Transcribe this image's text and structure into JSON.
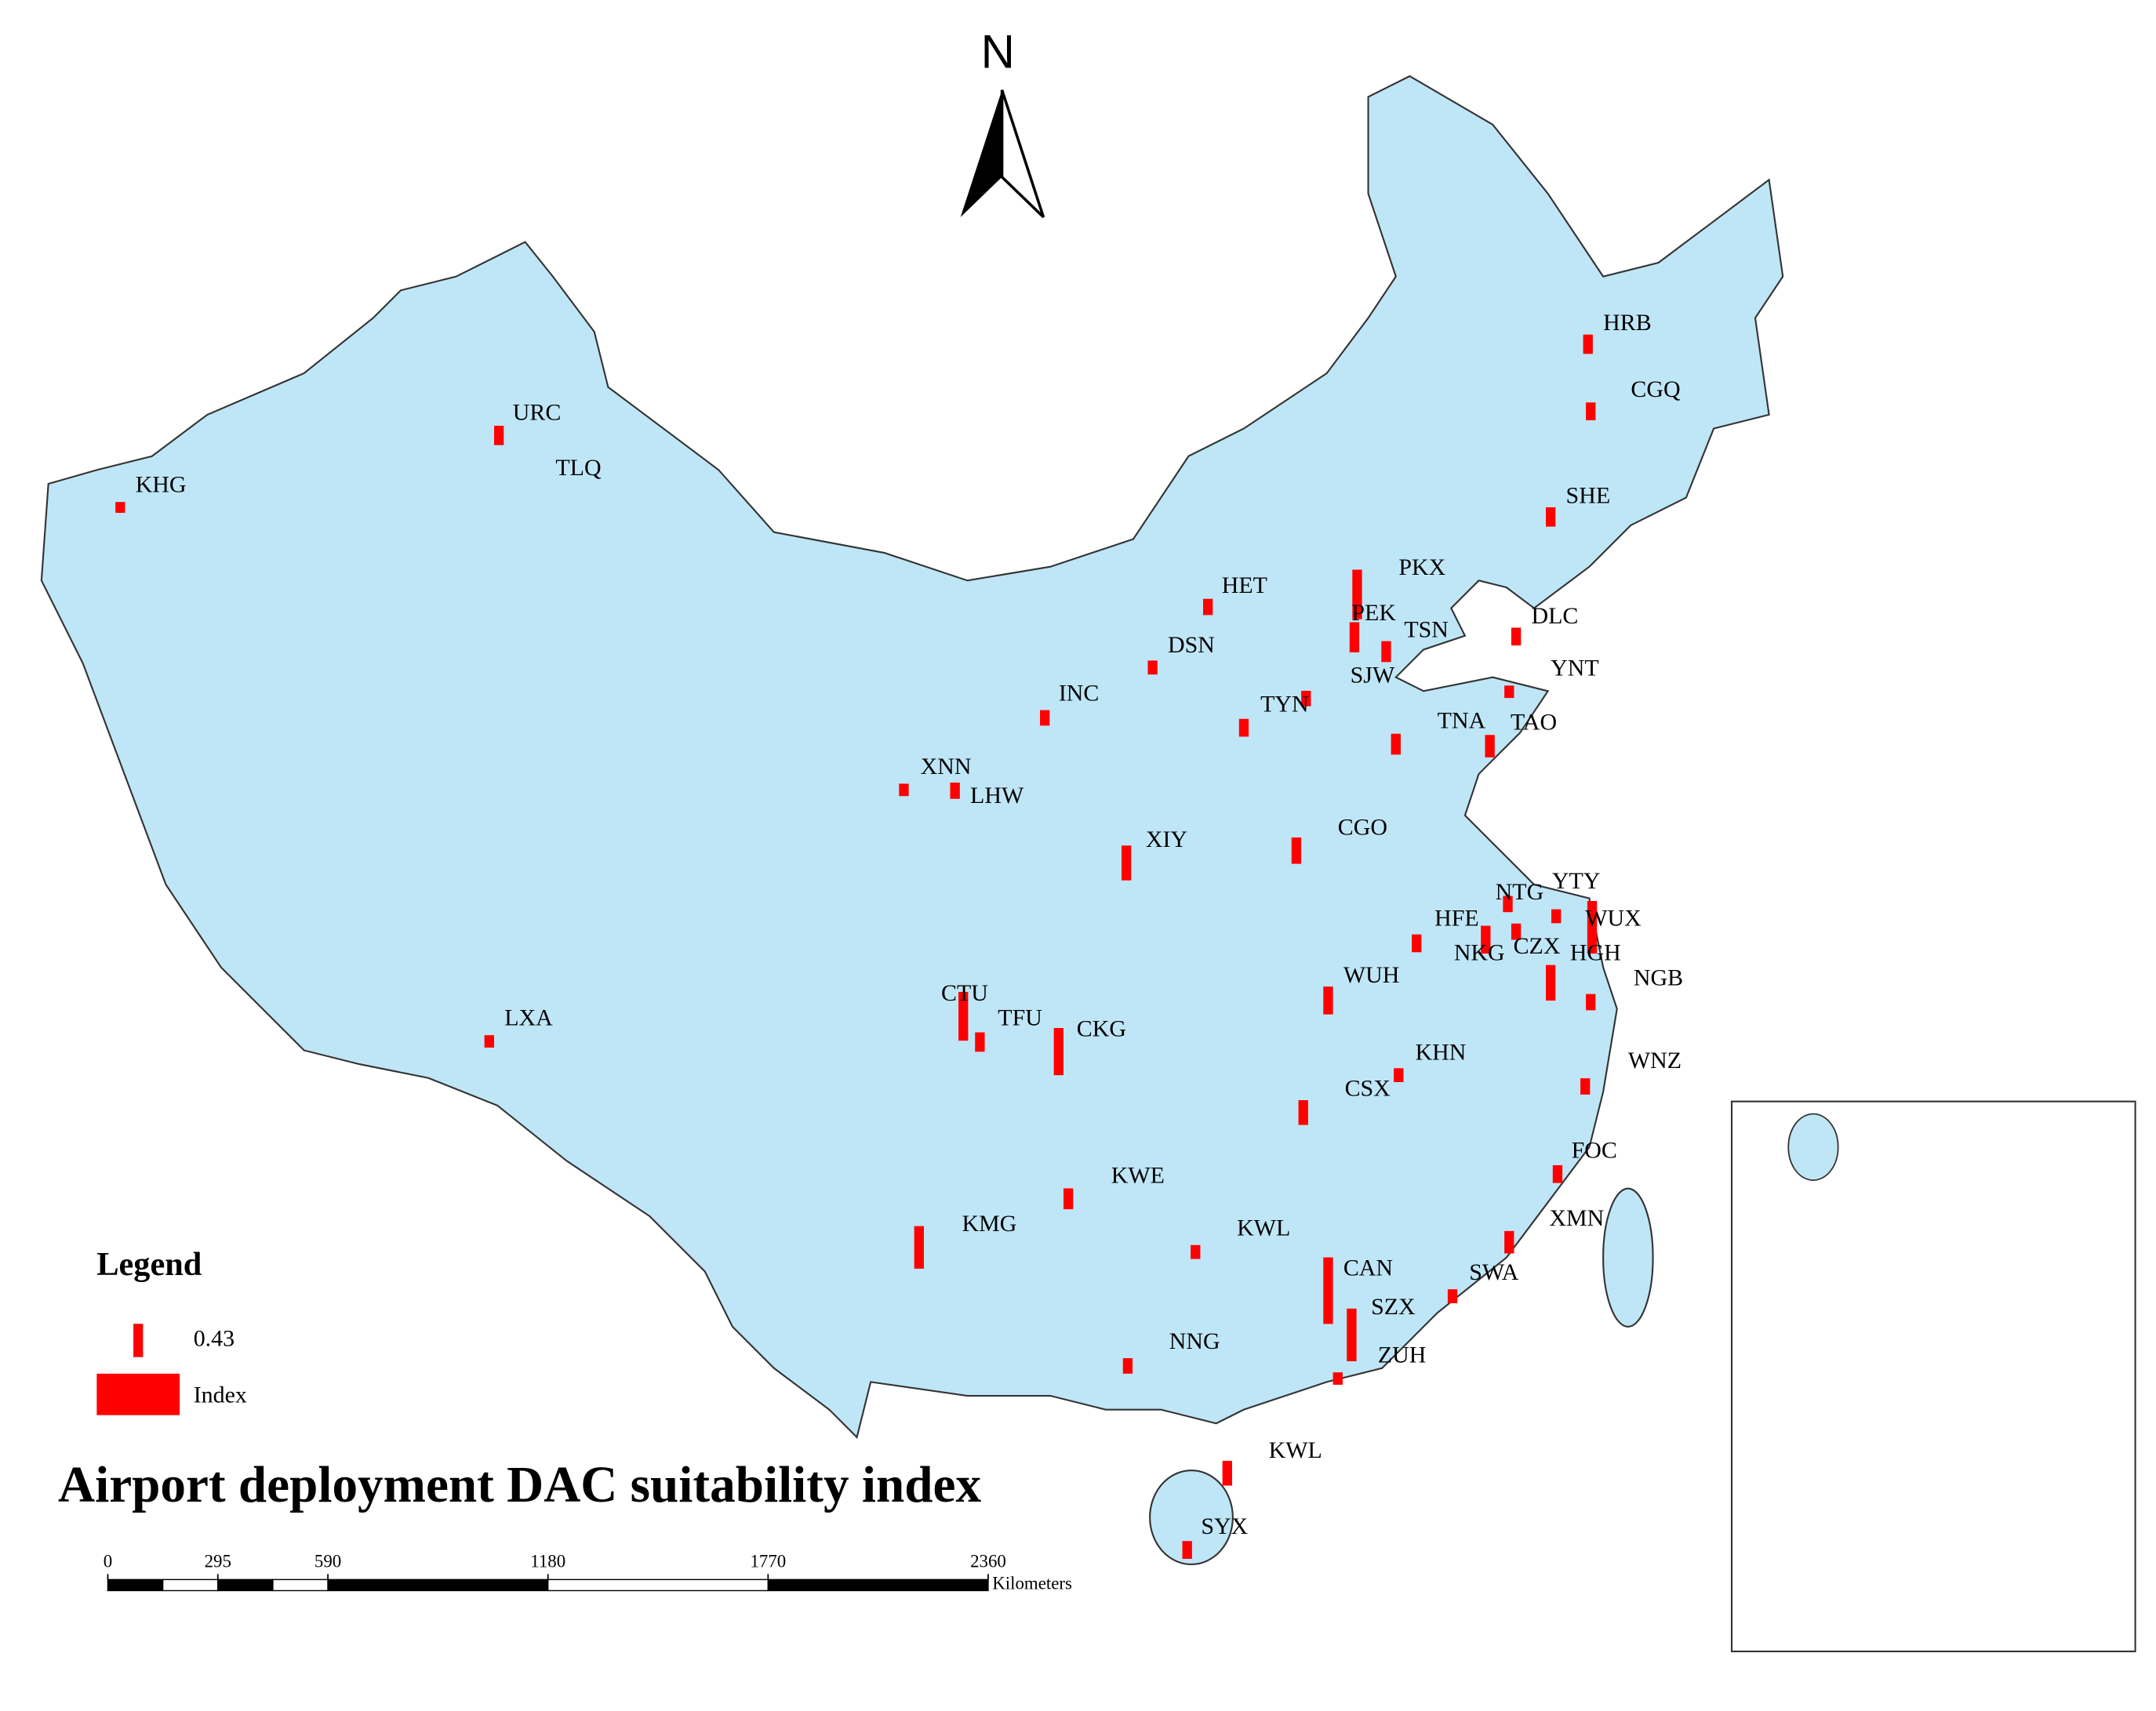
{
  "north_label": "N",
  "title": "Airport deployment DAC suitability index",
  "legend": {
    "title": "Legend",
    "sample": 0.43,
    "size_label": "Index"
  },
  "scale_bar": {
    "xlim": [
      0,
      2360
    ],
    "xticks": [
      0,
      295,
      590,
      1180,
      1770,
      2360
    ],
    "unit": "Kilometers"
  },
  "airports": [
    {
      "code": "HRB",
      "index": 0.25
    },
    {
      "code": "CGQ",
      "index": 0.23
    },
    {
      "code": "SHE",
      "index": 0.25
    },
    {
      "code": "PKX",
      "index": 0.64
    },
    {
      "code": "HET",
      "index": 0.21
    },
    {
      "code": "PEK",
      "index": 0.39
    },
    {
      "code": "TSN",
      "index": 0.27
    },
    {
      "code": "DLC",
      "index": 0.23
    },
    {
      "code": "DSN",
      "index": 0.18
    },
    {
      "code": "SJW",
      "index": 0.2
    },
    {
      "code": "YNT",
      "index": 0.16
    },
    {
      "code": "INC",
      "index": 0.2
    },
    {
      "code": "TYN",
      "index": 0.23
    },
    {
      "code": "TNA",
      "index": 0.27
    },
    {
      "code": "TAO",
      "index": 0.29
    },
    {
      "code": "XNN",
      "index": 0.16
    },
    {
      "code": "LHW",
      "index": 0.21
    },
    {
      "code": "XIY",
      "index": 0.45
    },
    {
      "code": "CGO",
      "index": 0.34
    },
    {
      "code": "YTY",
      "index": 0.18
    },
    {
      "code": "NTG",
      "index": 0.21
    },
    {
      "code": "WUX",
      "index": 0.68
    },
    {
      "code": "HFE",
      "index": 0.23
    },
    {
      "code": "NKG",
      "index": 0.36
    },
    {
      "code": "CZX",
      "index": 0.21
    },
    {
      "code": "HGH",
      "index": 0.46
    },
    {
      "code": "NGB",
      "index": 0.21
    },
    {
      "code": "WUH",
      "index": 0.36
    },
    {
      "code": "CTU",
      "index": 0.63
    },
    {
      "code": "TFU",
      "index": 0.25
    },
    {
      "code": "CKG",
      "index": 0.61
    },
    {
      "code": "LXA",
      "index": 0.16
    },
    {
      "code": "KHN",
      "index": 0.18
    },
    {
      "code": "CSX",
      "index": 0.32
    },
    {
      "code": "WNZ",
      "index": 0.21
    },
    {
      "code": "FOC",
      "index": 0.23
    },
    {
      "code": "KWE",
      "index": 0.27
    },
    {
      "code": "KMG",
      "index": 0.55
    },
    {
      "code": "XMN",
      "index": 0.29
    },
    {
      "code": "KWL",
      "index": 0.18
    },
    {
      "code": "CAN",
      "index": 0.86
    },
    {
      "code": "SWA",
      "index": 0.18
    },
    {
      "code": "SZX",
      "index": 0.68
    },
    {
      "code": "NNG",
      "index": 0.2
    },
    {
      "code": "ZUH",
      "index": 0.16
    },
    {
      "code": "KWL",
      "index": 0.32
    },
    {
      "code": "SYX",
      "index": 0.23
    },
    {
      "code": "URC",
      "index": 0.25
    },
    {
      "code": "TLQ",
      "index": null
    },
    {
      "code": "KHG",
      "index": 0.14
    }
  ]
}
